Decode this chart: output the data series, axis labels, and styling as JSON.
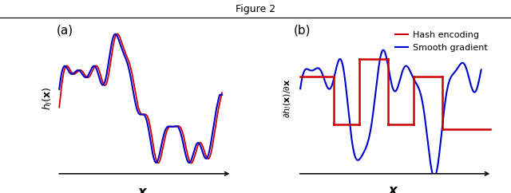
{
  "title": "Figure 2",
  "panel_a_label": "(a)",
  "panel_b_label": "(b)",
  "xlabel_a": "x",
  "xlabel_b": "x",
  "ylabel_a": "$h_l(\\mathbf{x})$",
  "ylabel_b": "$\\partial h_l(\\mathbf{x})/\\partial \\mathbf{x}$",
  "color_red": "#cc0000",
  "color_blue": "#0000cc",
  "legend_labels": [
    "Hash encoding",
    "Smooth gradient"
  ],
  "background": "#ffffff",
  "title_text": "Figure 2",
  "title_fontsize": 9,
  "panel_label_fontsize": 11,
  "axis_label_fontsize": 10,
  "legend_fontsize": 8
}
